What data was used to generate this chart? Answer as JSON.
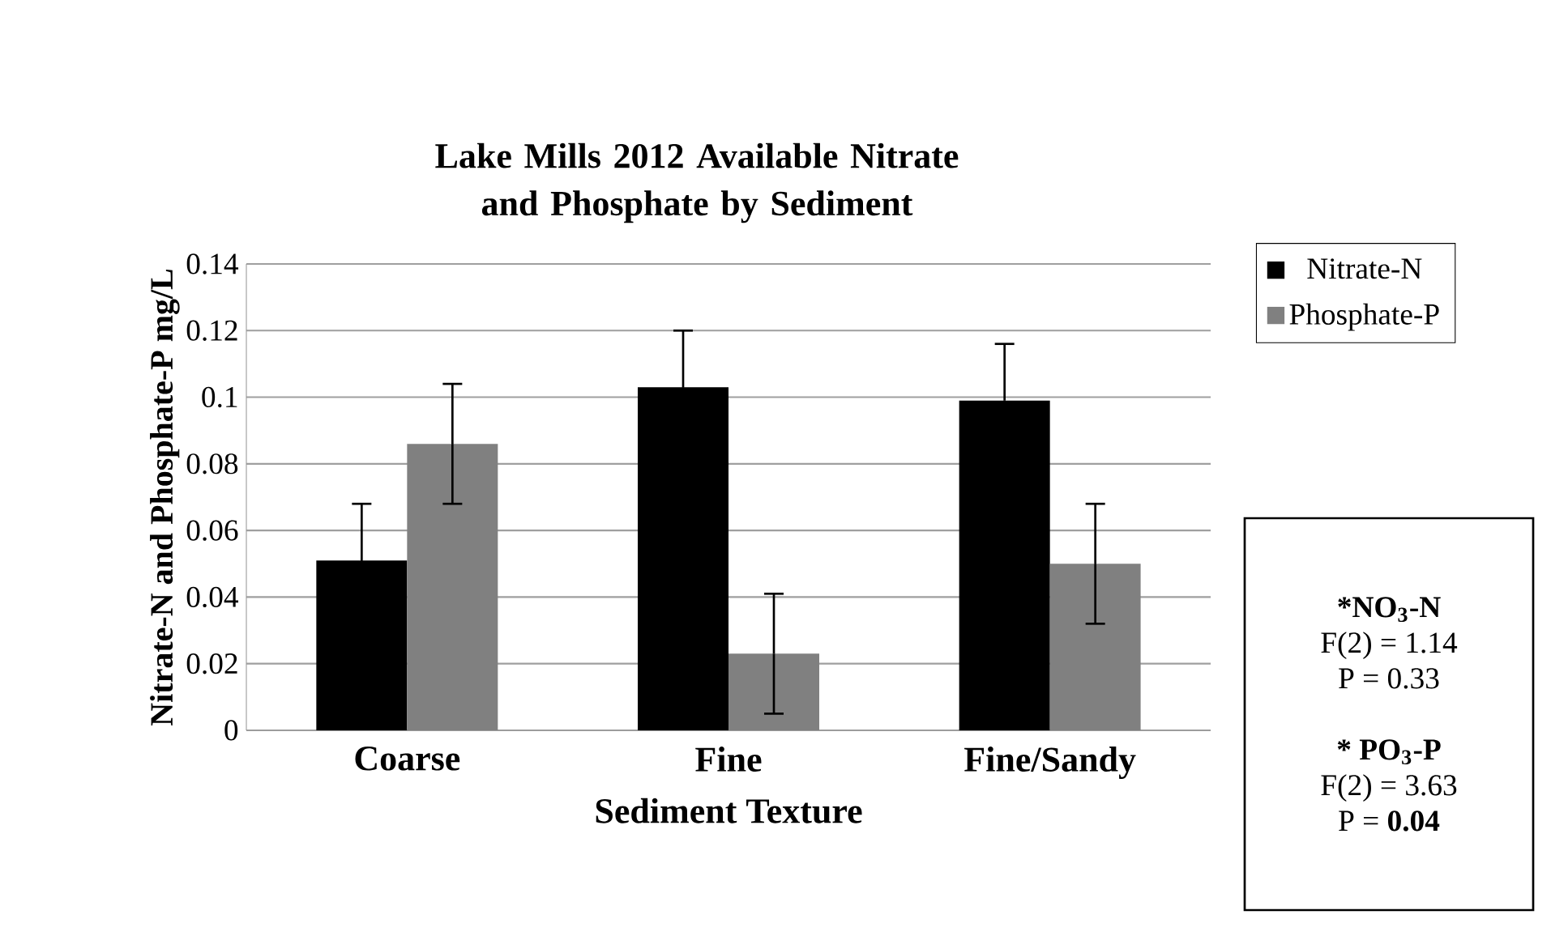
{
  "chart_data": {
    "type": "bar",
    "title": "Lake Mills 2012 Available Nitrate and Phosphate by Sediment",
    "xlabel": "Sediment Texture",
    "ylabel": "Nitrate-N and Phosphate-P mg/L",
    "categories": [
      "Coarse",
      "Fine",
      "Fine/Sandy"
    ],
    "series": [
      {
        "name": "Nitrate-N",
        "color": "#000000",
        "values": [
          0.051,
          0.103,
          0.099
        ],
        "errors": [
          0.017,
          0.017,
          0.017
        ]
      },
      {
        "name": "Phosphate-P",
        "color": "#808080",
        "values": [
          0.086,
          0.023,
          0.05
        ],
        "errors": [
          0.018,
          0.018,
          0.018
        ]
      }
    ],
    "ylim": [
      0,
      0.14
    ],
    "yticks": [
      0,
      0.02,
      0.04,
      0.06,
      0.08,
      0.1,
      0.12,
      0.14
    ],
    "grid": "y",
    "legend": "right",
    "annotations": [
      "*NO$_{3}$-N",
      "F(2) = 1.14",
      "P =  0.33",
      "* PO$_{3}$-P",
      "F(2) = 3.63",
      "P = **0.04**"
    ]
  }
}
